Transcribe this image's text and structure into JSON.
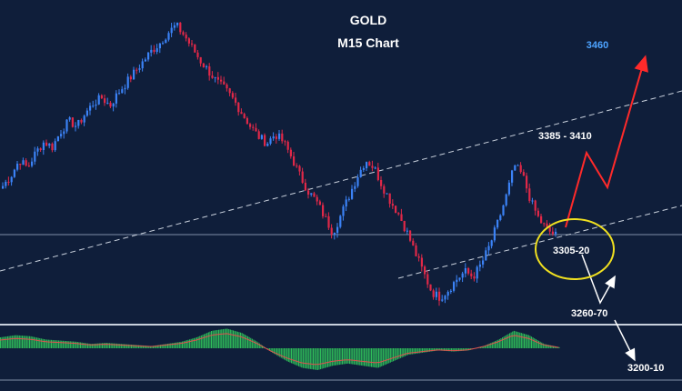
{
  "chart_data": {
    "type": "candlestick",
    "title": "GOLD",
    "subtitle": "M15 Chart",
    "annotations": {
      "target_high": "3460",
      "resistance": "3385 - 3410",
      "support_zone": "3305-20",
      "support_1": "3260-70",
      "support_2": "3200-10"
    },
    "colors": {
      "background": "#0f1e3a",
      "bull": "#3b82f6",
      "bear": "#e02848",
      "oscillator": "#2fbf5a",
      "forecast_up": "#ff2a2a",
      "forecast_down": "#ffffff",
      "highlight": "#f0e020",
      "target_text": "#4da3ff"
    },
    "price_path": [
      3352,
      3360,
      3372,
      3366,
      3378,
      3386,
      3382,
      3394,
      3402,
      3398,
      3408,
      3416,
      3420,
      3414,
      3424,
      3432,
      3440,
      3448,
      3456,
      3462,
      3470,
      3476,
      3468,
      3458,
      3448,
      3440,
      3432,
      3426,
      3418,
      3408,
      3398,
      3390,
      3385,
      3392,
      3386,
      3374,
      3360,
      3348,
      3340,
      3328,
      3316,
      3330,
      3345,
      3360,
      3372,
      3366,
      3352,
      3340,
      3330,
      3316,
      3300,
      3285,
      3270,
      3266,
      3272,
      3280,
      3286,
      3282,
      3292,
      3306,
      3324,
      3344,
      3368,
      3360,
      3340,
      3326,
      3318,
      3314
    ],
    "oscillator": [
      0.5,
      0.6,
      0.55,
      0.4,
      0.35,
      0.3,
      0.2,
      0.25,
      0.2,
      0.15,
      0.1,
      0.2,
      0.3,
      0.5,
      0.8,
      0.9,
      0.7,
      0.3,
      -0.2,
      -0.6,
      -0.9,
      -1.0,
      -0.8,
      -0.7,
      -0.8,
      -0.9,
      -0.6,
      -0.3,
      -0.2,
      -0.1,
      -0.15,
      -0.1,
      0.1,
      0.4,
      0.8,
      0.6,
      0.2,
      0.05
    ]
  }
}
